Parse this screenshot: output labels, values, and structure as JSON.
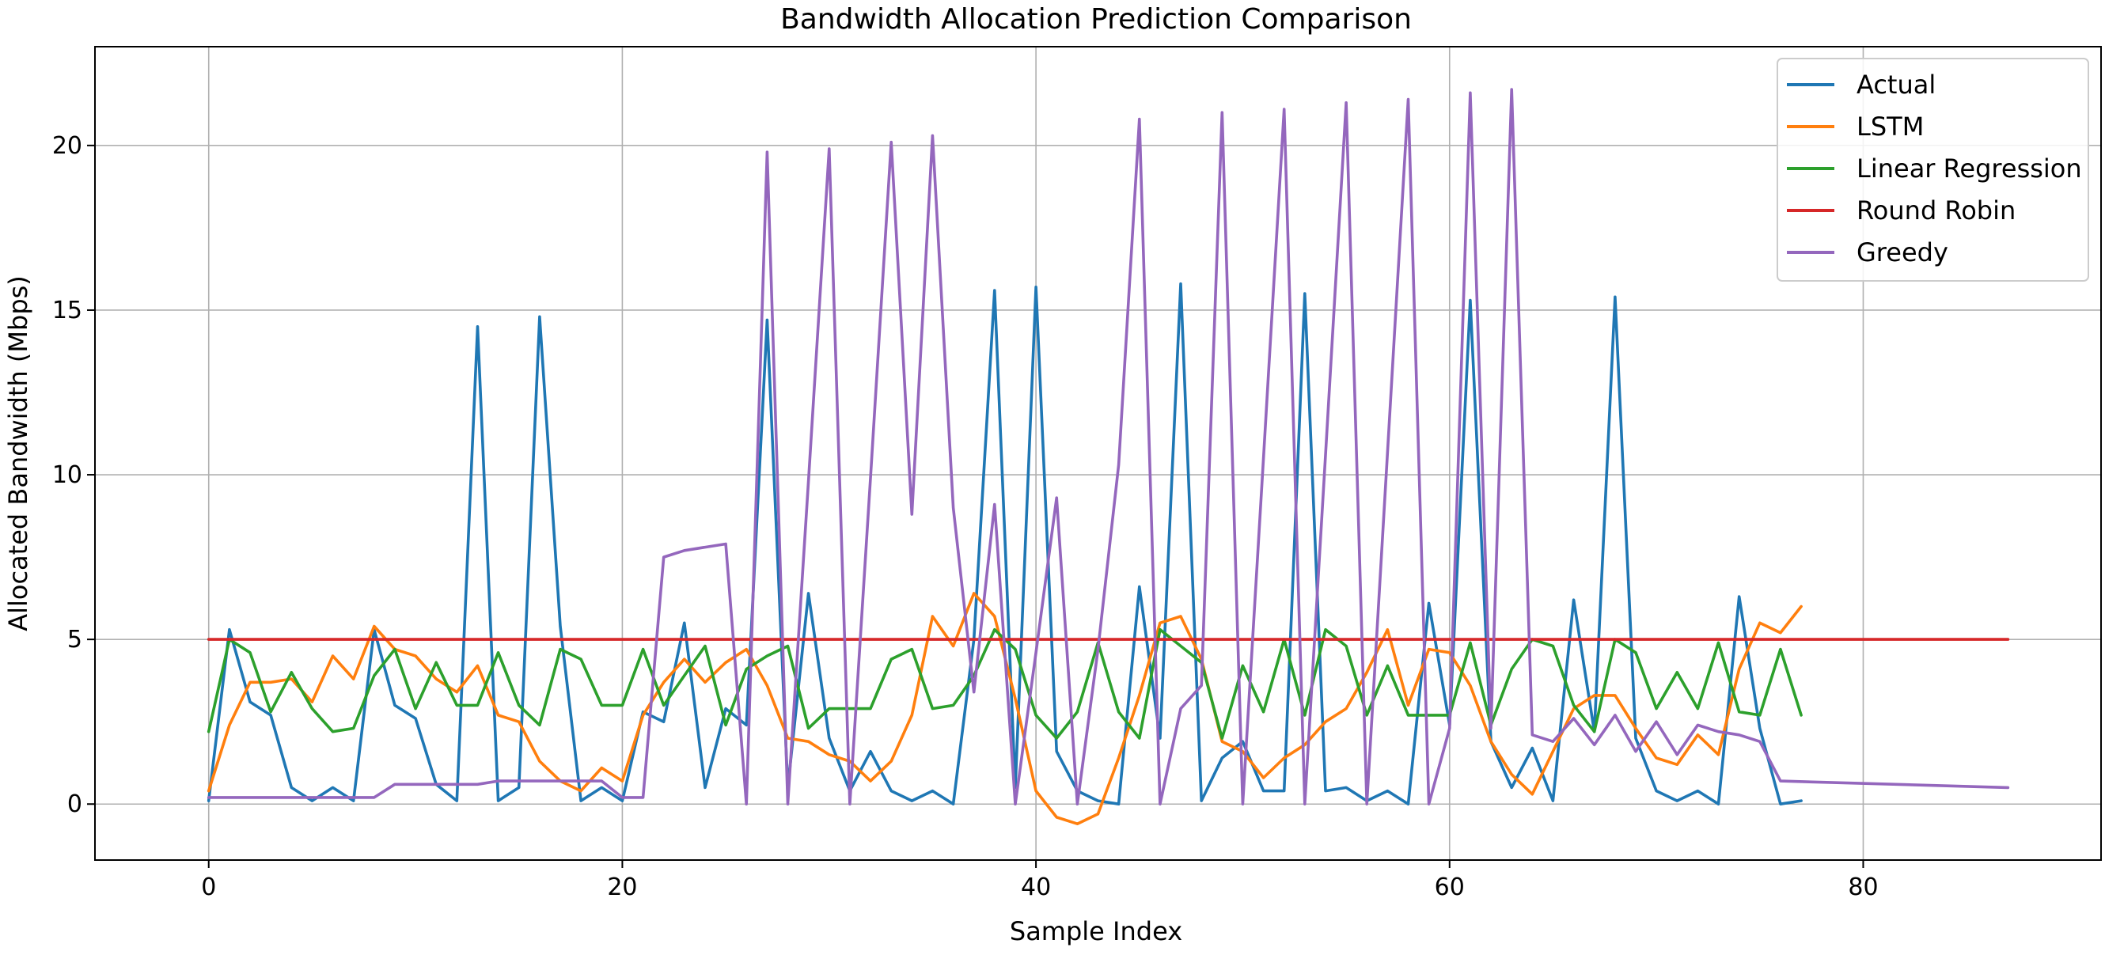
{
  "chart_data": {
    "type": "line",
    "title": "Bandwidth Allocation Prediction Comparison",
    "xlabel": "Sample Index",
    "ylabel": "Allocated Bandwidth (Mbps)",
    "xlim": [
      -5.5,
      91.5
    ],
    "ylim": [
      -1.7,
      23
    ],
    "xticks": [
      0,
      20,
      40,
      60,
      80
    ],
    "yticks": [
      0,
      5,
      10,
      15,
      20
    ],
    "grid": true,
    "legend_position": "top-right",
    "series": [
      {
        "name": "Actual",
        "color": "#1f77b4",
        "x": [
          0,
          1,
          2,
          3,
          4,
          5,
          6,
          7,
          8,
          9,
          10,
          11,
          12,
          13,
          14,
          15,
          16,
          17,
          18,
          19,
          20,
          21,
          22,
          23,
          24,
          25,
          26,
          27,
          28,
          29,
          30,
          31,
          32,
          33,
          34,
          35,
          36,
          37,
          38,
          39,
          40,
          41,
          42,
          43,
          44,
          45,
          46,
          47,
          48,
          49,
          50,
          51,
          52,
          53,
          54,
          55,
          56,
          57,
          58,
          59,
          60,
          61,
          62,
          63,
          64,
          65,
          66,
          67,
          68,
          69,
          70,
          71,
          72,
          73,
          74,
          75,
          76,
          77
        ],
        "y": [
          0.1,
          5.3,
          3.1,
          2.7,
          0.5,
          0.1,
          0.5,
          0.1,
          5.3,
          3.0,
          2.6,
          0.6,
          0.1,
          14.5,
          0.1,
          0.5,
          14.8,
          5.4,
          0.1,
          0.5,
          0.1,
          2.8,
          2.5,
          5.5,
          0.5,
          2.9,
          2.4,
          14.7,
          0.5,
          6.4,
          2.0,
          0.4,
          1.6,
          0.4,
          0.1,
          0.4,
          0.0,
          5.0,
          15.6,
          0.5,
          15.7,
          1.6,
          0.4,
          0.1,
          0.0,
          6.6,
          2.0,
          15.8,
          0.1,
          1.4,
          1.9,
          0.4,
          0.4,
          15.5,
          0.4,
          0.5,
          0.1,
          0.4,
          0.0,
          6.1,
          2.4,
          15.3,
          1.9,
          0.5,
          1.7,
          0.1,
          6.2,
          2.2,
          15.4,
          2.0,
          0.4,
          0.1,
          0.4,
          0.0,
          6.3,
          2.3,
          0.0,
          0.1
        ]
      },
      {
        "name": "LSTM",
        "color": "#ff7f0e",
        "x": [
          0,
          1,
          2,
          3,
          4,
          5,
          6,
          7,
          8,
          9,
          10,
          11,
          12,
          13,
          14,
          15,
          16,
          17,
          18,
          19,
          20,
          21,
          22,
          23,
          24,
          25,
          26,
          27,
          28,
          29,
          30,
          31,
          32,
          33,
          34,
          35,
          36,
          37,
          38,
          39,
          40,
          41,
          42,
          43,
          44,
          45,
          46,
          47,
          48,
          49,
          50,
          51,
          52,
          53,
          54,
          55,
          56,
          57,
          58,
          59,
          60,
          61,
          62,
          63,
          64,
          65,
          66,
          67,
          68,
          69,
          70,
          71,
          72,
          73,
          74,
          75,
          76,
          77
        ],
        "y": [
          0.4,
          2.4,
          3.7,
          3.7,
          3.8,
          3.1,
          4.5,
          3.8,
          5.4,
          4.7,
          4.5,
          3.8,
          3.4,
          4.2,
          2.7,
          2.5,
          1.3,
          0.7,
          0.4,
          1.1,
          0.7,
          2.7,
          3.7,
          4.4,
          3.7,
          4.3,
          4.7,
          3.6,
          2.0,
          1.9,
          1.5,
          1.3,
          0.7,
          1.3,
          2.7,
          5.7,
          4.8,
          6.4,
          5.7,
          3.2,
          0.4,
          -0.4,
          -0.6,
          -0.3,
          1.4,
          3.3,
          5.5,
          5.7,
          4.4,
          1.9,
          1.6,
          0.8,
          1.4,
          1.8,
          2.5,
          2.9,
          4.0,
          5.3,
          3.0,
          4.7,
          4.6,
          3.6,
          1.9,
          0.9,
          0.3,
          1.6,
          2.9,
          3.3,
          3.3,
          2.3,
          1.4,
          1.2,
          2.1,
          1.5,
          4.1,
          5.5,
          5.2,
          6.0
        ]
      },
      {
        "name": "Linear Regression",
        "color": "#2ca02c",
        "x": [
          0,
          1,
          2,
          3,
          4,
          5,
          6,
          7,
          8,
          9,
          10,
          11,
          12,
          13,
          14,
          15,
          16,
          17,
          18,
          19,
          20,
          21,
          22,
          23,
          24,
          25,
          26,
          27,
          28,
          29,
          30,
          31,
          32,
          33,
          34,
          35,
          36,
          37,
          38,
          39,
          40,
          41,
          42,
          43,
          44,
          45,
          46,
          47,
          48,
          49,
          50,
          51,
          52,
          53,
          54,
          55,
          56,
          57,
          58,
          59,
          60,
          61,
          62,
          63,
          64,
          65,
          66,
          67,
          68,
          69,
          70,
          71,
          72,
          73,
          74,
          75,
          76,
          77
        ],
        "y": [
          2.2,
          5.0,
          4.6,
          2.8,
          4.0,
          2.9,
          2.2,
          2.3,
          3.9,
          4.7,
          2.9,
          4.3,
          3.0,
          3.0,
          4.6,
          3.0,
          2.4,
          4.7,
          4.4,
          3.0,
          3.0,
          4.7,
          3.0,
          3.9,
          4.8,
          2.4,
          4.1,
          4.5,
          4.8,
          2.3,
          2.9,
          2.9,
          2.9,
          4.4,
          4.7,
          2.9,
          3.0,
          3.9,
          5.3,
          4.7,
          2.7,
          2.0,
          2.8,
          4.9,
          2.8,
          2.0,
          5.3,
          4.8,
          4.3,
          2.0,
          4.2,
          2.8,
          5.0,
          2.7,
          5.3,
          4.8,
          2.7,
          4.2,
          2.7,
          2.7,
          2.7,
          4.9,
          2.4,
          4.1,
          5.0,
          4.8,
          3.0,
          2.2,
          5.0,
          4.6,
          2.9,
          4.0,
          2.9,
          4.9,
          2.8,
          2.7,
          4.7,
          2.7
        ]
      },
      {
        "name": "Round Robin",
        "color": "#d62728",
        "x": [
          0,
          87
        ],
        "y": [
          5.0,
          5.0
        ]
      },
      {
        "name": "Greedy",
        "color": "#9467bd",
        "x": [
          0,
          1,
          2,
          3,
          4,
          5,
          6,
          7,
          8,
          9,
          10,
          11,
          12,
          13,
          14,
          15,
          16,
          17,
          18,
          19,
          20,
          21,
          22,
          23,
          24,
          25,
          26,
          27,
          28,
          29,
          30,
          31,
          32,
          33,
          34,
          35,
          36,
          37,
          38,
          39,
          40,
          41,
          42,
          43,
          44,
          45,
          46,
          47,
          48,
          49,
          50,
          51,
          52,
          53,
          54,
          55,
          56,
          57,
          58,
          59,
          60,
          61,
          62,
          63,
          64,
          65,
          66,
          67,
          68,
          69,
          70,
          71,
          72,
          73,
          74,
          75,
          76,
          87
        ],
        "y": [
          0.2,
          0.2,
          0.2,
          0.2,
          0.2,
          0.2,
          0.2,
          0.2,
          0.2,
          0.6,
          0.6,
          0.6,
          0.6,
          0.6,
          0.7,
          0.7,
          0.7,
          0.7,
          0.7,
          0.7,
          0.2,
          0.2,
          7.5,
          7.7,
          7.8,
          7.9,
          0.0,
          19.8,
          0.0,
          9.8,
          19.9,
          0.0,
          9.9,
          20.1,
          8.8,
          20.3,
          9.0,
          3.4,
          9.1,
          0.0,
          4.6,
          9.3,
          0.0,
          4.7,
          10.3,
          20.8,
          0.0,
          2.9,
          3.6,
          21.0,
          0.0,
          10.5,
          21.1,
          0.0,
          10.6,
          21.3,
          0.0,
          10.7,
          21.4,
          0.0,
          2.3,
          21.6,
          2.3,
          21.7,
          2.1,
          1.9,
          2.6,
          1.8,
          2.7,
          1.6,
          2.5,
          1.5,
          2.4,
          2.2,
          2.1,
          1.9,
          0.7,
          0.5
        ]
      }
    ]
  }
}
